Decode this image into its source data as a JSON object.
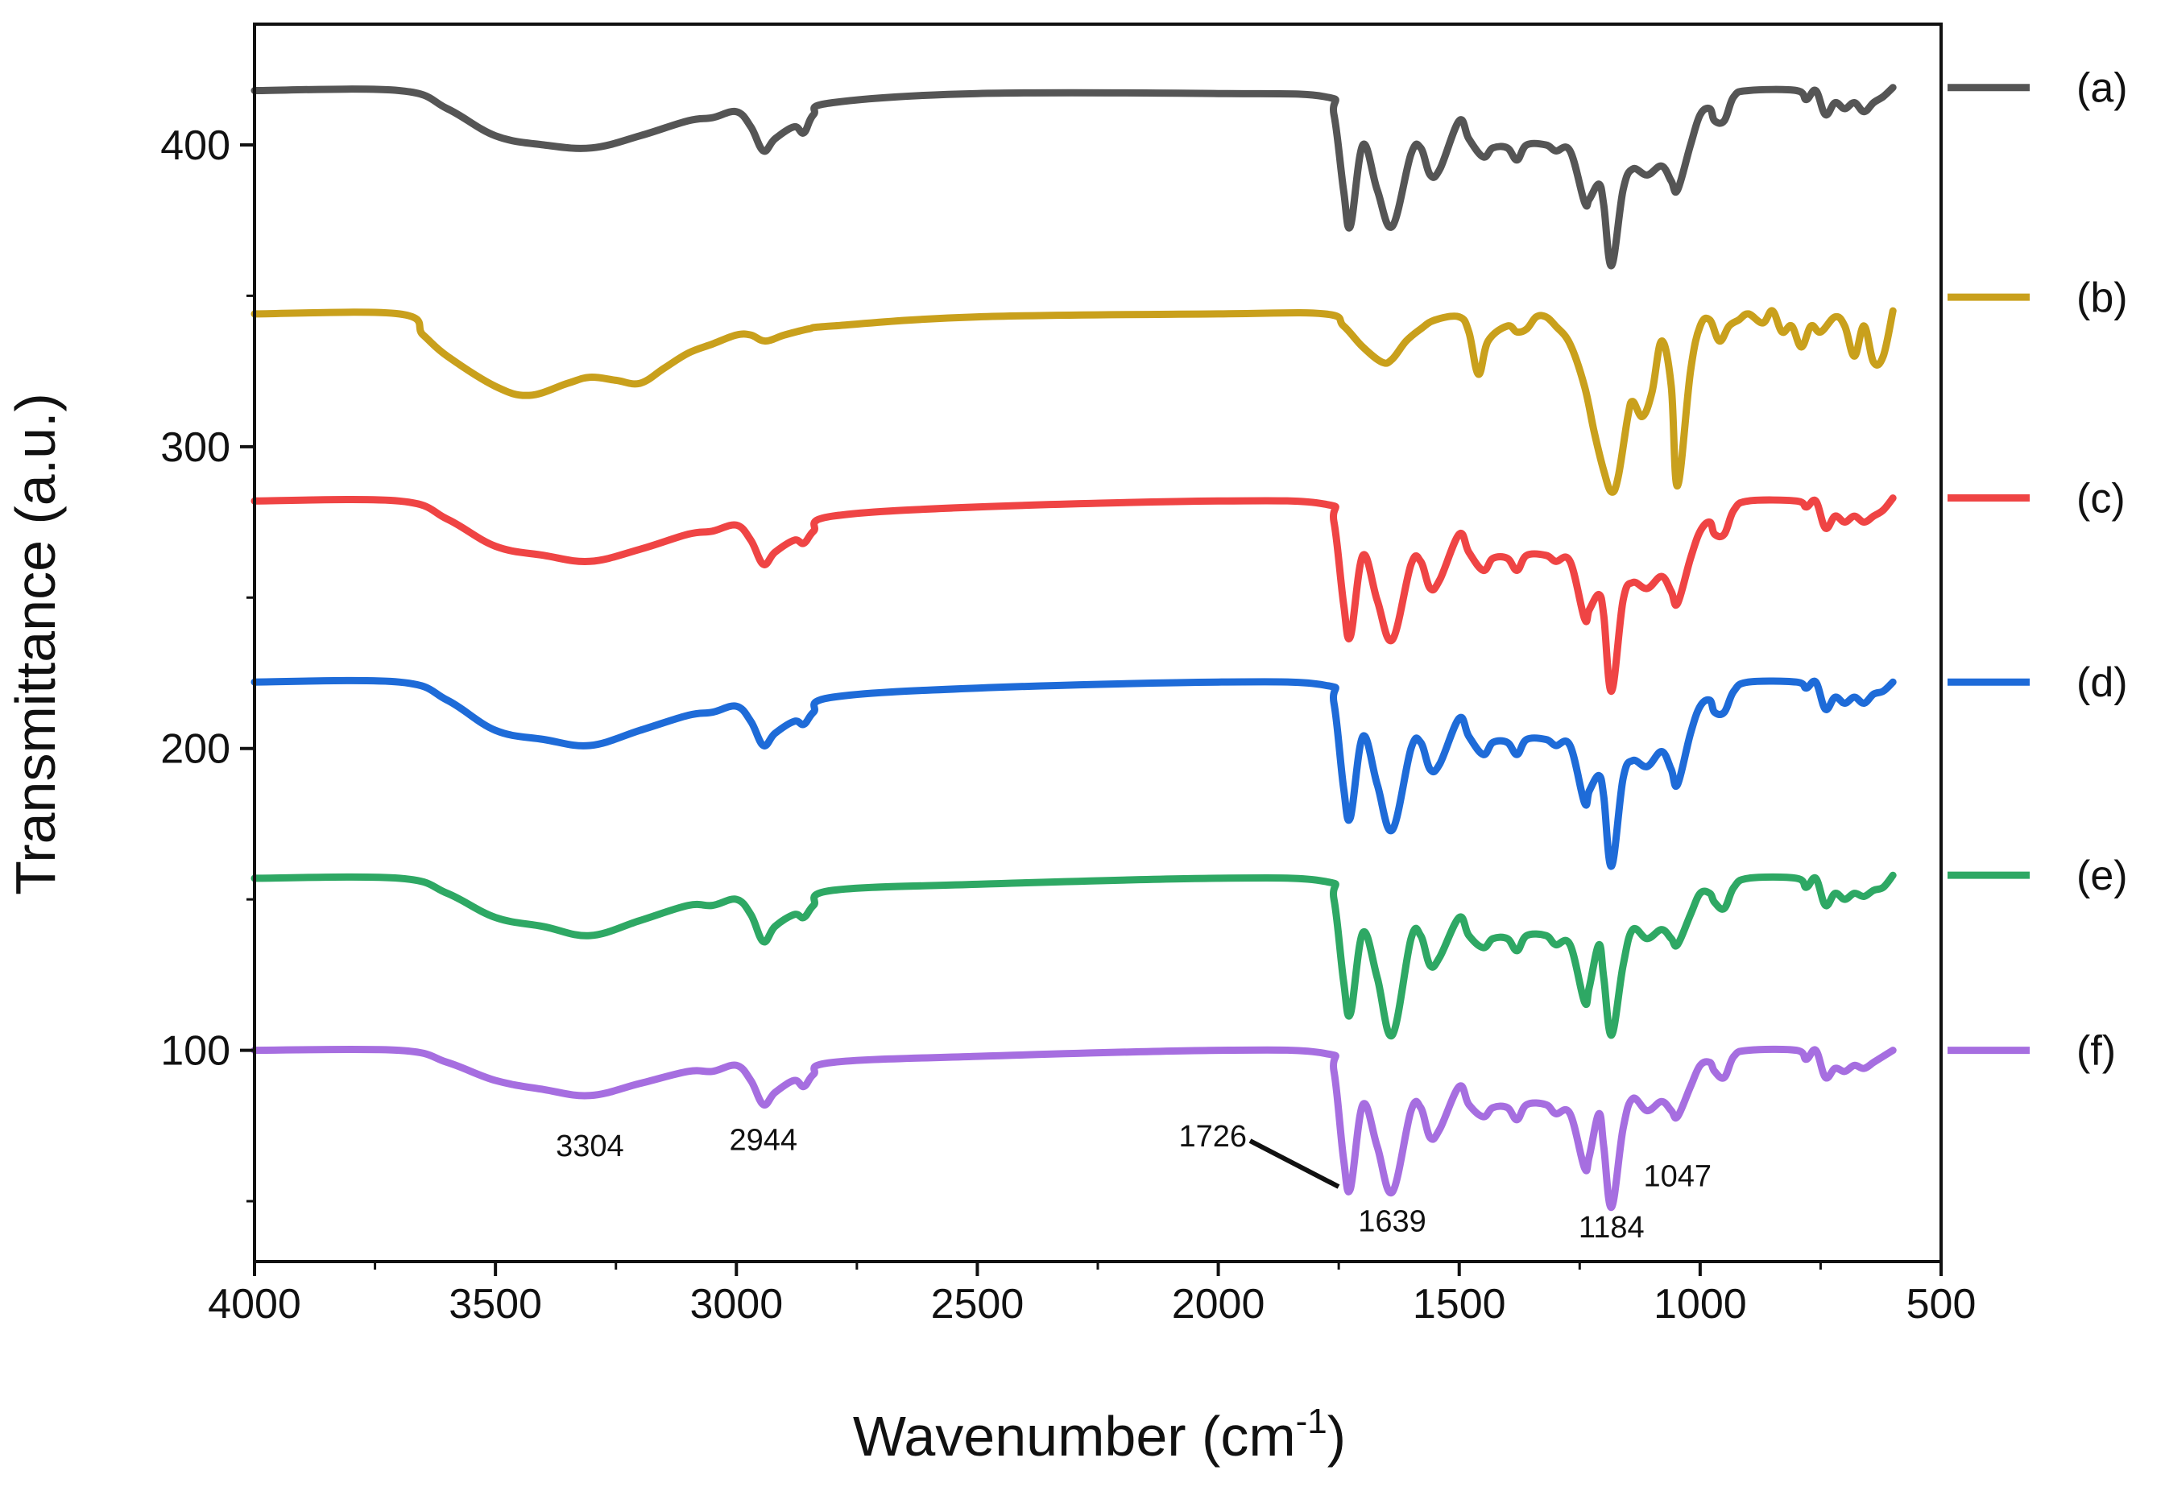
{
  "chart_data": {
    "type": "line",
    "title": "",
    "xlabel": "Wavenumber (cm",
    "xlabel_sup": "-1",
    "xlabel_end": ")",
    "ylabel": "Transmittance (a.u.)",
    "xlim": [
      4000,
      500
    ],
    "ylim": [
      30,
      440
    ],
    "x_ticks": [
      4000,
      3500,
      3000,
      2500,
      2000,
      1500,
      1000,
      500
    ],
    "y_ticks": [
      100,
      200,
      300,
      400
    ],
    "grid": false,
    "legend_position": "right",
    "series": [
      {
        "name": "(a)",
        "color": "#555555",
        "x": [
          4000,
          3700,
          3600,
          3500,
          3400,
          3300,
          3200,
          3100,
          3050,
          3000,
          2970,
          2944,
          2920,
          2880,
          2860,
          2840,
          2800,
          2500,
          2000,
          1780,
          1760,
          1740,
          1726,
          1700,
          1670,
          1639,
          1600,
          1580,
          1560,
          1540,
          1500,
          1480,
          1450,
          1430,
          1400,
          1380,
          1360,
          1320,
          1300,
          1270,
          1240,
          1230,
          1210,
          1200,
          1184,
          1160,
          1140,
          1110,
          1080,
          1060,
          1047,
          1020,
          1000,
          980,
          970,
          950,
          930,
          900,
          800,
          780,
          760,
          740,
          720,
          700,
          680,
          660,
          640,
          620,
          600
        ],
        "values": [
          418,
          418,
          412,
          403,
          400,
          399,
          403,
          408,
          409,
          411,
          406,
          398,
          402,
          406,
          404,
          410,
          414,
          417,
          417,
          416,
          410,
          385,
          373,
          400,
          385,
          373,
          397,
          399,
          390,
          392,
          408,
          402,
          396,
          399,
          399,
          395,
          400,
          400,
          398,
          398,
          381,
          382,
          387,
          380,
          360,
          385,
          392,
          390,
          393,
          388,
          385,
          400,
          410,
          412,
          408,
          408,
          416,
          418,
          418,
          415,
          418,
          410,
          414,
          412,
          414,
          411,
          414,
          416,
          419
        ]
      },
      {
        "name": "(b)",
        "color": "#C9A01C",
        "x": [
          4000,
          3700,
          3650,
          3600,
          3500,
          3430,
          3350,
          3304,
          3250,
          3200,
          3150,
          3100,
          3050,
          3000,
          2970,
          2940,
          2900,
          2850,
          2800,
          2500,
          2000,
          1780,
          1740,
          1700,
          1660,
          1639,
          1610,
          1580,
          1550,
          1500,
          1480,
          1460,
          1440,
          1400,
          1380,
          1360,
          1340,
          1320,
          1300,
          1270,
          1240,
          1220,
          1200,
          1184,
          1170,
          1150,
          1140,
          1120,
          1100,
          1080,
          1060,
          1047,
          1020,
          1000,
          980,
          960,
          940,
          920,
          900,
          870,
          850,
          830,
          810,
          790,
          770,
          750,
          720,
          700,
          680,
          660,
          640,
          620,
          600
        ],
        "values": [
          344,
          344,
          337,
          330,
          320,
          317,
          321,
          323,
          322,
          321,
          326,
          331,
          334,
          337,
          337,
          335,
          337,
          339,
          340,
          343,
          344,
          344,
          340,
          333,
          328,
          329,
          335,
          339,
          342,
          343,
          338,
          324,
          335,
          340,
          338,
          339,
          343,
          343,
          340,
          334,
          320,
          305,
          292,
          285,
          290,
          310,
          315,
          310,
          318,
          335,
          320,
          287,
          325,
          340,
          342,
          335,
          340,
          342,
          344,
          341,
          345,
          338,
          340,
          333,
          340,
          338,
          343,
          340,
          330,
          340,
          328,
          330,
          345
        ]
      },
      {
        "name": "(c)",
        "color": "#EF4444",
        "x": [
          4000,
          3700,
          3600,
          3500,
          3400,
          3304,
          3200,
          3100,
          3050,
          3000,
          2970,
          2944,
          2920,
          2880,
          2860,
          2840,
          2800,
          2500,
          2000,
          1780,
          1760,
          1740,
          1726,
          1700,
          1670,
          1639,
          1600,
          1580,
          1560,
          1540,
          1500,
          1480,
          1450,
          1430,
          1400,
          1380,
          1360,
          1320,
          1300,
          1270,
          1240,
          1230,
          1210,
          1200,
          1184,
          1160,
          1140,
          1110,
          1080,
          1060,
          1047,
          1020,
          1000,
          980,
          970,
          950,
          930,
          900,
          800,
          780,
          760,
          740,
          720,
          700,
          680,
          660,
          640,
          620,
          600
        ],
        "values": [
          282,
          282,
          276,
          267,
          264,
          262,
          266,
          271,
          272,
          274,
          269,
          261,
          265,
          269,
          268,
          272,
          277,
          280,
          282,
          281,
          275,
          248,
          237,
          264,
          249,
          236,
          261,
          262,
          253,
          256,
          271,
          265,
          259,
          263,
          263,
          259,
          264,
          264,
          262,
          262,
          243,
          246,
          251,
          244,
          219,
          249,
          255,
          253,
          257,
          252,
          248,
          263,
          272,
          275,
          271,
          271,
          279,
          282,
          282,
          280,
          282,
          273,
          277,
          275,
          277,
          275,
          277,
          279,
          283
        ]
      },
      {
        "name": "(d)",
        "color": "#1E6BD8",
        "x": [
          4000,
          3700,
          3600,
          3500,
          3400,
          3304,
          3200,
          3100,
          3050,
          3000,
          2970,
          2944,
          2920,
          2880,
          2860,
          2840,
          2800,
          2500,
          2000,
          1780,
          1760,
          1740,
          1726,
          1700,
          1670,
          1639,
          1600,
          1580,
          1560,
          1540,
          1500,
          1480,
          1450,
          1430,
          1400,
          1380,
          1360,
          1320,
          1300,
          1270,
          1240,
          1230,
          1210,
          1200,
          1184,
          1160,
          1140,
          1110,
          1080,
          1060,
          1047,
          1020,
          1000,
          980,
          970,
          950,
          930,
          900,
          800,
          780,
          760,
          740,
          720,
          700,
          680,
          660,
          640,
          620,
          600
        ],
        "values": [
          222,
          222,
          216,
          206,
          203,
          201,
          206,
          211,
          212,
          214,
          209,
          201,
          205,
          209,
          208,
          212,
          217,
          220,
          222,
          221,
          215,
          187,
          177,
          204,
          188,
          173,
          200,
          202,
          193,
          195,
          210,
          204,
          198,
          202,
          202,
          198,
          203,
          203,
          201,
          201,
          182,
          186,
          191,
          184,
          161,
          190,
          196,
          194,
          199,
          193,
          188,
          205,
          214,
          216,
          212,
          212,
          219,
          222,
          222,
          220,
          222,
          213,
          217,
          215,
          217,
          215,
          218,
          219,
          222
        ]
      },
      {
        "name": "(e)",
        "color": "#2EA864",
        "x": [
          4000,
          3700,
          3600,
          3500,
          3400,
          3304,
          3200,
          3100,
          3050,
          3000,
          2970,
          2944,
          2920,
          2880,
          2860,
          2840,
          2800,
          2500,
          2000,
          1780,
          1760,
          1740,
          1726,
          1700,
          1670,
          1639,
          1600,
          1580,
          1560,
          1540,
          1500,
          1480,
          1450,
          1430,
          1400,
          1380,
          1360,
          1320,
          1300,
          1270,
          1240,
          1230,
          1210,
          1200,
          1184,
          1160,
          1140,
          1110,
          1080,
          1060,
          1047,
          1020,
          1000,
          980,
          970,
          950,
          930,
          900,
          800,
          780,
          760,
          740,
          720,
          700,
          680,
          660,
          640,
          620,
          600
        ],
        "values": [
          157,
          157,
          152,
          144,
          141,
          138,
          143,
          148,
          148,
          150,
          145,
          136,
          141,
          145,
          144,
          148,
          153,
          155,
          157,
          156,
          150,
          123,
          112,
          139,
          124,
          105,
          137,
          138,
          128,
          131,
          144,
          138,
          134,
          137,
          137,
          133,
          138,
          138,
          135,
          135,
          116,
          121,
          135,
          124,
          105,
          128,
          140,
          137,
          140,
          137,
          135,
          145,
          152,
          152,
          149,
          147,
          154,
          157,
          157,
          154,
          157,
          148,
          152,
          150,
          152,
          151,
          153,
          154,
          158
        ]
      },
      {
        "name": "(f)",
        "color": "#A66EE0",
        "x": [
          4000,
          3700,
          3600,
          3500,
          3400,
          3304,
          3200,
          3100,
          3050,
          3000,
          2970,
          2944,
          2920,
          2880,
          2860,
          2840,
          2800,
          2500,
          2000,
          1780,
          1760,
          1740,
          1726,
          1700,
          1670,
          1639,
          1600,
          1580,
          1560,
          1540,
          1500,
          1480,
          1450,
          1430,
          1400,
          1380,
          1360,
          1320,
          1300,
          1270,
          1240,
          1230,
          1210,
          1200,
          1184,
          1160,
          1140,
          1110,
          1080,
          1060,
          1047,
          1020,
          1000,
          980,
          970,
          950,
          930,
          900,
          800,
          780,
          760,
          740,
          720,
          700,
          680,
          660,
          640,
          620,
          600
        ],
        "values": [
          100,
          100,
          96,
          90,
          87,
          85,
          89,
          93,
          93,
          95,
          90,
          82,
          86,
          90,
          88,
          92,
          96,
          98,
          100,
          99,
          93,
          64,
          54,
          82,
          68,
          53,
          80,
          81,
          71,
          74,
          88,
          82,
          78,
          81,
          81,
          77,
          82,
          82,
          79,
          79,
          61,
          65,
          79,
          68,
          48,
          74,
          84,
          80,
          83,
          80,
          78,
          88,
          95,
          96,
          93,
          91,
          98,
          100,
          100,
          97,
          100,
          91,
          94,
          93,
          95,
          94,
          96,
          98,
          100
        ]
      }
    ],
    "annotations": [
      {
        "text": "3304",
        "x": 3304,
        "y": 65
      },
      {
        "text": "2944",
        "x": 2944,
        "y": 67
      },
      {
        "text": "1726",
        "x": 1726,
        "y": 54
      },
      {
        "text": "1639",
        "x": 1639,
        "y": 40
      },
      {
        "text": "1184",
        "x": 1184,
        "y": 38
      },
      {
        "text": "1047",
        "x": 1047,
        "y": 55
      }
    ]
  }
}
